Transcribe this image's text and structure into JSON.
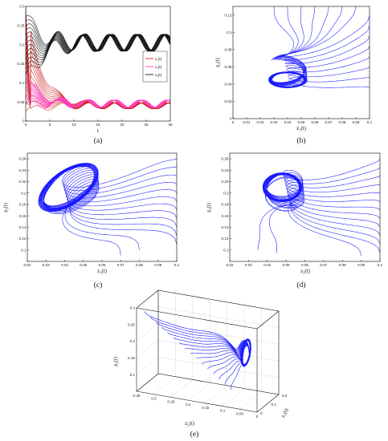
{
  "chart_data": [
    {
      "id": "a",
      "panel_label": "(a)",
      "type": "line",
      "xlabel": "t",
      "ylabel": "",
      "xlim": [
        0,
        30
      ],
      "ylim": [
        0,
        0.3
      ],
      "x_ticks": [
        "0",
        "5",
        "10",
        "15",
        "20",
        "25",
        "30"
      ],
      "y_ticks": [
        "0",
        "0.05",
        "0.1",
        "0.15",
        "0.2",
        "0.25",
        "0.3"
      ],
      "legend_position": "center-right",
      "series": [
        {
          "name": "z1(t)",
          "legend_label": "z₁(t)",
          "color": "#cc2222",
          "initial_values": [
            0.3,
            0.025
          ],
          "oscillation_center": 0.04,
          "oscillation_amplitude": 0.008,
          "period": 5.6
        },
        {
          "name": "z2(t)",
          "legend_label": "z₂(t)",
          "color": "#ff40c0",
          "initial_values": [
            0.04,
            0.12
          ],
          "oscillation_center": 0.045,
          "oscillation_amplitude": 0.01,
          "period": 5.6
        },
        {
          "name": "z3(t)",
          "legend_label": "z₃(t)",
          "color": "#111111",
          "initial_values": [
            0.1,
            0.27
          ],
          "oscillation_center": 0.205,
          "oscillation_amplitude": 0.022,
          "period": 5.6
        }
      ]
    },
    {
      "id": "b",
      "panel_label": "(b)",
      "type": "line",
      "xlabel": "z₁(t)",
      "ylabel": "z₂(t)",
      "xlim": [
        0,
        0.1
      ],
      "ylim": [
        0,
        0.13
      ],
      "x_ticks": [
        "0",
        "0.01",
        "0.02",
        "0.03",
        "0.04",
        "0.05",
        "0.06",
        "0.07",
        "0.08",
        "0.09",
        "0.1"
      ],
      "y_ticks": [
        "0",
        "0.02",
        "0.04",
        "0.06",
        "0.08",
        "0.1",
        "0.12"
      ],
      "color": "#1a1aff",
      "limit_cycle": {
        "center": [
          0.04,
          0.045
        ],
        "radius": [
          0.012,
          0.008
        ]
      },
      "trajectory_starts": [
        [
          0.03,
          0.13
        ],
        [
          0.04,
          0.13
        ],
        [
          0.05,
          0.13
        ],
        [
          0.06,
          0.13
        ],
        [
          0.07,
          0.13
        ],
        [
          0.08,
          0.13
        ],
        [
          0.09,
          0.13
        ],
        [
          0.1,
          0.12
        ],
        [
          0.1,
          0.108
        ],
        [
          0.1,
          0.096
        ],
        [
          0.1,
          0.084
        ],
        [
          0.1,
          0.072
        ],
        [
          0.1,
          0.06
        ],
        [
          0.1,
          0.048
        ],
        [
          0.1,
          0.036
        ]
      ]
    },
    {
      "id": "c",
      "panel_label": "(c)",
      "type": "line",
      "xlabel": "z₁(t)",
      "ylabel": "z₃(t)",
      "xlim": [
        0.02,
        0.1
      ],
      "ylim": [
        0.08,
        0.27
      ],
      "x_ticks": [
        "0.02",
        "0.03",
        "0.04",
        "0.05",
        "0.06",
        "0.07",
        "0.08",
        "0.09",
        "0.1"
      ],
      "y_ticks": [
        "0.1",
        "0.12",
        "0.14",
        "0.16",
        "0.18",
        "0.2",
        "0.22",
        "0.24",
        "0.26"
      ],
      "color": "#1a1aff",
      "limit_cycle": {
        "center": [
          0.042,
          0.21
        ],
        "radius": [
          0.016,
          0.026
        ],
        "tilt_deg": 35
      },
      "trajectory_starts": [
        [
          0.1,
          0.26
        ],
        [
          0.1,
          0.245
        ],
        [
          0.1,
          0.23
        ],
        [
          0.1,
          0.215
        ],
        [
          0.1,
          0.2
        ],
        [
          0.1,
          0.185
        ],
        [
          0.1,
          0.17
        ],
        [
          0.1,
          0.155
        ],
        [
          0.1,
          0.14
        ],
        [
          0.1,
          0.125
        ],
        [
          0.1,
          0.11
        ],
        [
          0.08,
          0.1
        ],
        [
          0.07,
          0.09
        ]
      ]
    },
    {
      "id": "d",
      "panel_label": "(d)",
      "type": "line",
      "xlabel": "z₂(t)",
      "ylabel": "z₃(t)",
      "xlim": [
        0.02,
        0.1
      ],
      "ylim": [
        0.08,
        0.27
      ],
      "x_ticks": [
        "0.02",
        "0.03",
        "0.04",
        "0.05",
        "0.06",
        "0.07",
        "0.08",
        "0.09",
        "0.1"
      ],
      "y_ticks": [
        "0.1",
        "0.12",
        "0.14",
        "0.16",
        "0.18",
        "0.2",
        "0.22",
        "0.24",
        "0.26"
      ],
      "color": "#1a1aff",
      "limit_cycle": {
        "center": [
          0.048,
          0.21
        ],
        "radius": [
          0.009,
          0.022
        ]
      },
      "trajectory_starts": [
        [
          0.1,
          0.26
        ],
        [
          0.1,
          0.245
        ],
        [
          0.1,
          0.23
        ],
        [
          0.1,
          0.215
        ],
        [
          0.1,
          0.2
        ],
        [
          0.1,
          0.185
        ],
        [
          0.1,
          0.17
        ],
        [
          0.1,
          0.155
        ],
        [
          0.1,
          0.14
        ],
        [
          0.1,
          0.125
        ],
        [
          0.1,
          0.11
        ],
        [
          0.1,
          0.095
        ],
        [
          0.09,
          0.09
        ],
        [
          0.035,
          0.1
        ],
        [
          0.045,
          0.095
        ]
      ]
    },
    {
      "id": "e",
      "panel_label": "(e)",
      "type": "line",
      "projection": "3d",
      "xlabel": "z₂(t)",
      "ylabel": "z₁(t)",
      "zlabel": "z₃(t)",
      "z2_range": [
        0,
        0.35
      ],
      "z1_range": [
        0,
        0.2
      ],
      "z3_range": [
        0.05,
        0.3
      ],
      "z2_ticks": [
        "0.35",
        "0.3",
        "0.25",
        "0.2",
        "0.15",
        "0.1",
        "0.05",
        "0"
      ],
      "z1_ticks": [
        "0",
        "0.1",
        "0.2"
      ],
      "z3_ticks": [
        "0.1",
        "0.15",
        "0.2",
        "0.25",
        "0.3"
      ],
      "color": "#1a1aff",
      "limit_cycle": {
        "center": [
          0.04,
          0.045,
          0.21
        ]
      }
    }
  ]
}
